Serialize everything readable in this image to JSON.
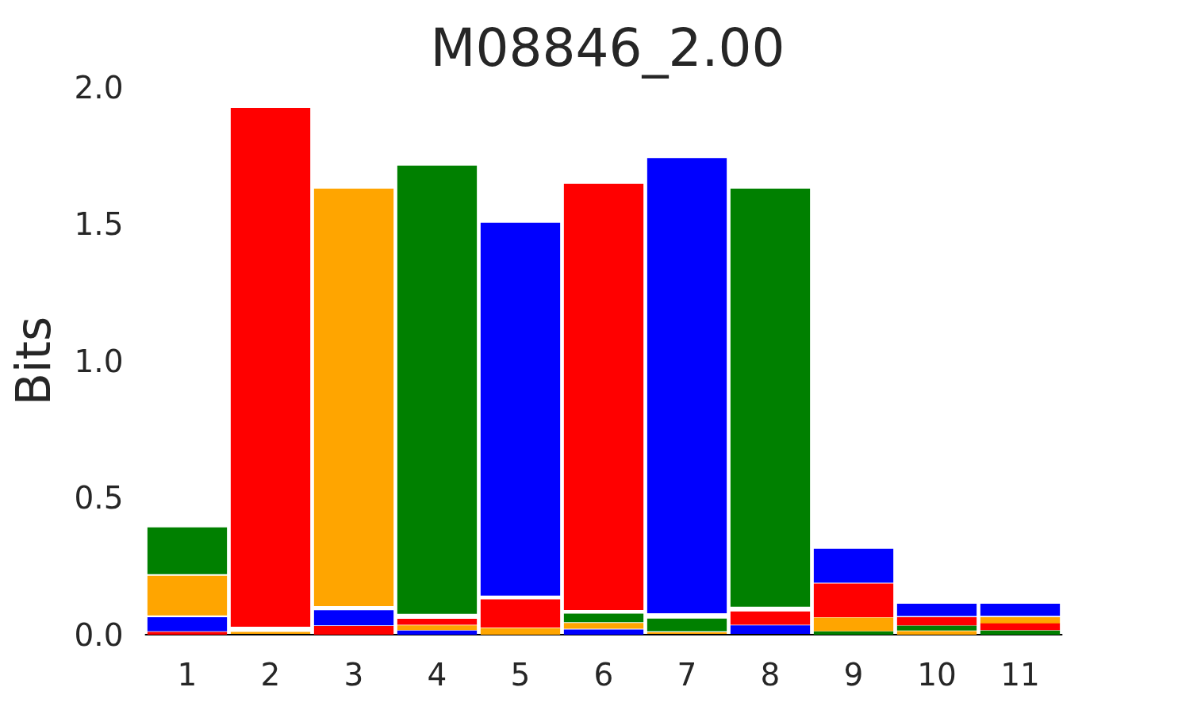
{
  "chart_data": {
    "type": "bar",
    "title": "M08846_2.00",
    "ylabel": "Bits",
    "categories": [
      "1",
      "2",
      "3",
      "4",
      "5",
      "6",
      "7",
      "8",
      "9",
      "10",
      "11"
    ],
    "series": [
      {
        "color": "#008000",
        "values": [
          0.171,
          null,
          null,
          1.638,
          null,
          0.031,
          0.047,
          1.528,
          0.012,
          0.018,
          0.015
        ],
        "base": [
          0.221,
          null,
          null,
          0.076,
          null,
          0.046,
          0.012,
          0.102,
          0,
          0.015,
          0
        ]
      },
      {
        "color": "#0000ff",
        "values": [
          0.052,
          null,
          0.055,
          0.015,
          1.362,
          0.019,
          1.663,
          0.031,
          0.124,
          0.045,
          0.044
        ],
        "base": [
          0.012,
          null,
          0.034,
          0,
          0.143,
          0,
          0.078,
          0.003,
          0.19,
          0.068,
          0.069
        ]
      },
      {
        "color": "#ffa500",
        "values": [
          0.145,
          0.007,
          1.526,
          0.017,
          0.024,
          0.021,
          0.006,
          null,
          0.049,
          0.013,
          0.024
        ],
        "base": [
          0.07,
          0.003,
          0.104,
          0.017,
          0,
          0.022,
          0.003,
          null,
          0.013,
          0,
          0.04
        ]
      },
      {
        "color": "#ff0000",
        "values": [
          0.01,
          1.896,
          0.032,
          0.022,
          0.103,
          1.557,
          null,
          0.049,
          0.123,
          0.03,
          0.024
        ],
        "base": [
          0,
          0.029,
          0,
          0.036,
          0.026,
          0.09,
          null,
          0.036,
          0.064,
          0.034,
          0.017
        ]
      }
    ],
    "ylim": [
      0,
      2
    ],
    "yticks": [
      {
        "value": 0,
        "label": "0.0"
      },
      {
        "value": 0.5,
        "label": "0.5"
      },
      {
        "value": 1,
        "label": "1.0"
      },
      {
        "value": 1.5,
        "label": "1.5"
      },
      {
        "value": 2,
        "label": "2.0"
      }
    ]
  }
}
